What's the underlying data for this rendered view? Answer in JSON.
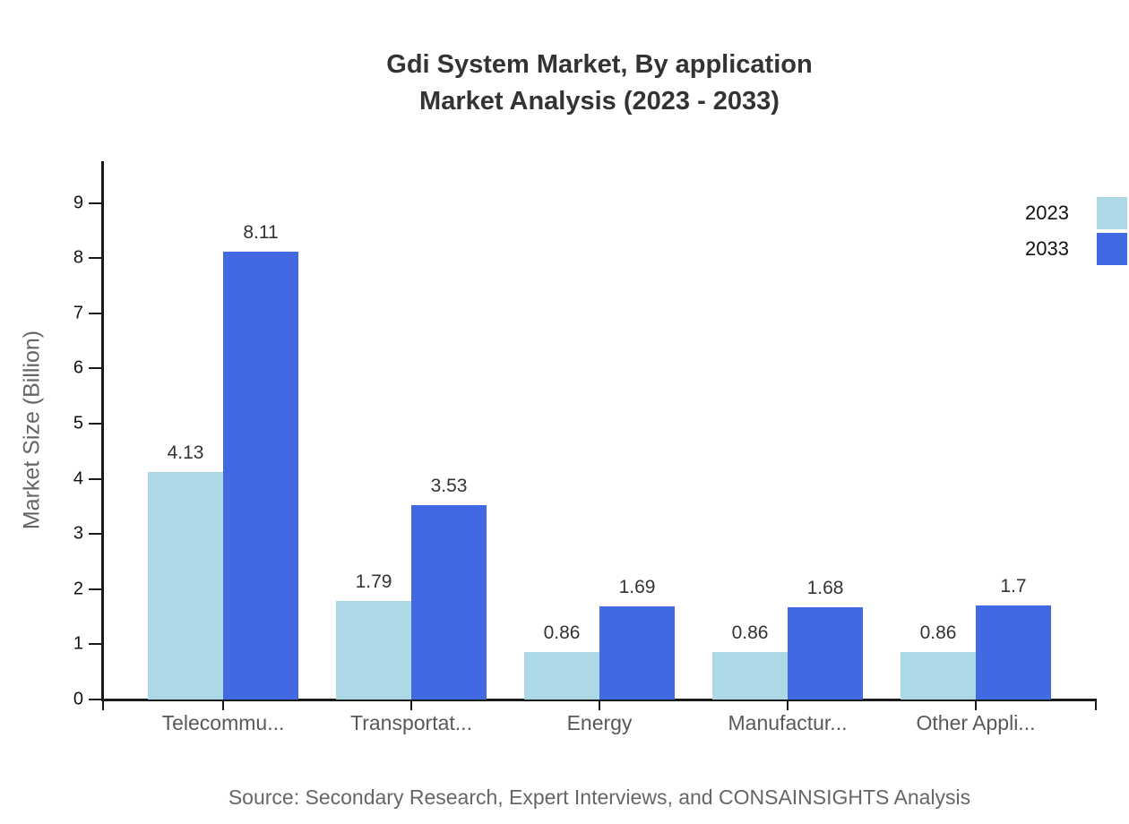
{
  "title": {
    "line1": "Gdi System Market, By application",
    "line2": "Market Analysis (2023 - 2033)"
  },
  "axes": {
    "y_label": "Market Size (Billion)",
    "y_ticks": [
      "0",
      "1",
      "2",
      "3",
      "4",
      "5",
      "6",
      "7",
      "8",
      "9"
    ]
  },
  "legend": {
    "items": [
      {
        "label": "2023",
        "color": "#ADD8E6"
      },
      {
        "label": "2033",
        "color": "#4169E1"
      }
    ]
  },
  "source": "Source: Secondary Research, Expert Interviews, and CONSAINSIGHTS Analysis",
  "chart_data": {
    "type": "bar",
    "title": "Gdi System Market, By application Market Analysis (2023 - 2033)",
    "categories": [
      "Telecommu...",
      "Transportat...",
      "Energy",
      "Manufactur...",
      "Other Appli..."
    ],
    "series": [
      {
        "name": "2023",
        "color": "#ADD8E6",
        "values": [
          4.13,
          1.79,
          0.86,
          0.86,
          0.86
        ]
      },
      {
        "name": "2033",
        "color": "#4169E1",
        "values": [
          8.11,
          3.53,
          1.69,
          1.68,
          1.7
        ]
      }
    ],
    "xlabel": "",
    "ylabel": "Market Size (Billion)",
    "ylim": [
      0,
      10
    ],
    "y_tick_step": 1,
    "grid": false,
    "value_labels": true,
    "legend_position": "top-right"
  }
}
